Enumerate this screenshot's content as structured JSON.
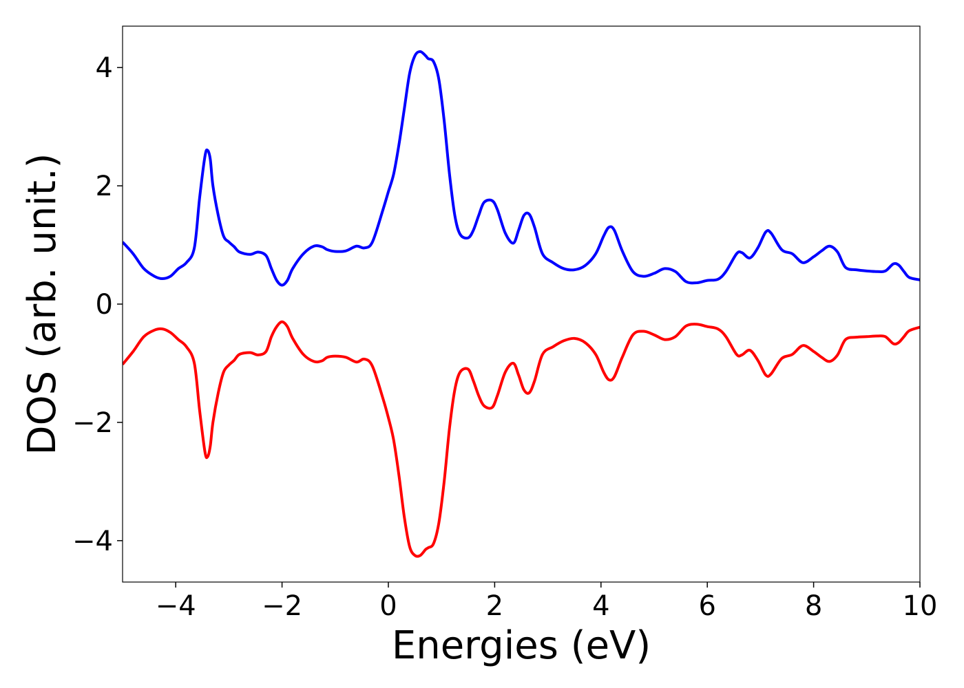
{
  "chart_data": {
    "type": "line",
    "title": "",
    "xlabel": "Energies (eV)",
    "ylabel": "DOS (arb. unit.)",
    "xlim": [
      -5,
      10
    ],
    "ylim": [
      -4.7,
      4.7
    ],
    "xticks": [
      -4,
      -2,
      0,
      2,
      4,
      6,
      8,
      10
    ],
    "yticks": [
      -4,
      -2,
      0,
      2,
      4
    ],
    "xtick_labels": [
      "−4",
      "−2",
      "0",
      "2",
      "4",
      "6",
      "8",
      "10"
    ],
    "ytick_labels": [
      "−4",
      "−2",
      "0",
      "2",
      "4"
    ],
    "grid": false,
    "legend": "none",
    "series": [
      {
        "color": "#0000ff",
        "x": [
          -5.0,
          -4.8,
          -4.6,
          -4.4,
          -4.25,
          -4.1,
          -3.95,
          -3.8,
          -3.65,
          -3.55,
          -3.45,
          -3.4,
          -3.35,
          -3.3,
          -3.2,
          -3.1,
          -3.0,
          -2.9,
          -2.8,
          -2.6,
          -2.45,
          -2.3,
          -2.2,
          -2.1,
          -2.0,
          -1.9,
          -1.8,
          -1.6,
          -1.4,
          -1.25,
          -1.15,
          -1.0,
          -0.8,
          -0.6,
          -0.45,
          -0.3,
          -0.1,
          0.0,
          0.1,
          0.2,
          0.3,
          0.4,
          0.5,
          0.6,
          0.7,
          0.75,
          0.85,
          0.95,
          1.05,
          1.15,
          1.25,
          1.35,
          1.5,
          1.6,
          1.7,
          1.8,
          1.95,
          2.05,
          2.2,
          2.35,
          2.45,
          2.55,
          2.65,
          2.75,
          2.9,
          3.1,
          3.3,
          3.5,
          3.7,
          3.9,
          4.05,
          4.15,
          4.25,
          4.4,
          4.6,
          4.8,
          5.0,
          5.2,
          5.4,
          5.6,
          5.8,
          6.0,
          6.2,
          6.35,
          6.55,
          6.65,
          6.8,
          6.95,
          7.1,
          7.2,
          7.4,
          7.6,
          7.8,
          8.0,
          8.15,
          8.3,
          8.45,
          8.6,
          8.8,
          9.0,
          9.2,
          9.35,
          9.5,
          9.6,
          9.7,
          9.8,
          10.0
        ],
        "values": [
          1.05,
          0.85,
          0.6,
          0.47,
          0.43,
          0.47,
          0.6,
          0.7,
          0.95,
          1.8,
          2.5,
          2.6,
          2.45,
          2.0,
          1.5,
          1.15,
          1.05,
          0.97,
          0.88,
          0.84,
          0.88,
          0.82,
          0.6,
          0.4,
          0.32,
          0.4,
          0.6,
          0.85,
          0.98,
          0.97,
          0.92,
          0.89,
          0.9,
          0.98,
          0.95,
          1.05,
          1.6,
          1.9,
          2.2,
          2.7,
          3.3,
          3.9,
          4.2,
          4.27,
          4.2,
          4.15,
          4.1,
          3.8,
          3.1,
          2.2,
          1.5,
          1.18,
          1.12,
          1.25,
          1.5,
          1.72,
          1.75,
          1.6,
          1.2,
          1.03,
          1.25,
          1.5,
          1.52,
          1.3,
          0.85,
          0.7,
          0.6,
          0.58,
          0.65,
          0.85,
          1.15,
          1.3,
          1.25,
          0.9,
          0.55,
          0.47,
          0.52,
          0.6,
          0.55,
          0.38,
          0.36,
          0.4,
          0.42,
          0.55,
          0.85,
          0.87,
          0.78,
          0.95,
          1.22,
          1.2,
          0.92,
          0.85,
          0.7,
          0.8,
          0.9,
          0.98,
          0.88,
          0.62,
          0.58,
          0.56,
          0.55,
          0.56,
          0.68,
          0.66,
          0.55,
          0.45,
          0.41
        ]
      },
      {
        "color": "#ff0000",
        "x": [
          -5.0,
          -4.8,
          -4.6,
          -4.4,
          -4.25,
          -4.1,
          -3.95,
          -3.8,
          -3.65,
          -3.55,
          -3.45,
          -3.4,
          -3.35,
          -3.3,
          -3.2,
          -3.1,
          -3.0,
          -2.9,
          -2.8,
          -2.6,
          -2.45,
          -2.3,
          -2.2,
          -2.1,
          -2.0,
          -1.9,
          -1.8,
          -1.6,
          -1.4,
          -1.25,
          -1.15,
          -1.0,
          -0.8,
          -0.6,
          -0.45,
          -0.3,
          -0.1,
          0.0,
          0.1,
          0.2,
          0.3,
          0.4,
          0.5,
          0.6,
          0.7,
          0.75,
          0.85,
          0.95,
          1.05,
          1.15,
          1.25,
          1.35,
          1.5,
          1.6,
          1.7,
          1.8,
          1.95,
          2.05,
          2.2,
          2.35,
          2.45,
          2.55,
          2.65,
          2.75,
          2.9,
          3.1,
          3.3,
          3.5,
          3.7,
          3.9,
          4.05,
          4.15,
          4.25,
          4.4,
          4.6,
          4.8,
          5.0,
          5.2,
          5.4,
          5.6,
          5.8,
          6.0,
          6.2,
          6.35,
          6.55,
          6.65,
          6.8,
          6.95,
          7.1,
          7.2,
          7.4,
          7.6,
          7.8,
          8.0,
          8.15,
          8.3,
          8.45,
          8.6,
          8.8,
          9.0,
          9.2,
          9.35,
          9.5,
          9.6,
          9.7,
          9.8,
          10.0
        ],
        "values": [
          -1.02,
          -0.8,
          -0.55,
          -0.44,
          -0.42,
          -0.48,
          -0.6,
          -0.72,
          -1.0,
          -1.8,
          -2.5,
          -2.58,
          -2.4,
          -2.0,
          -1.5,
          -1.15,
          -1.03,
          -0.95,
          -0.85,
          -0.82,
          -0.86,
          -0.8,
          -0.55,
          -0.38,
          -0.3,
          -0.38,
          -0.58,
          -0.85,
          -0.97,
          -0.96,
          -0.9,
          -0.88,
          -0.9,
          -0.98,
          -0.93,
          -1.05,
          -1.6,
          -1.92,
          -2.3,
          -2.9,
          -3.6,
          -4.1,
          -4.25,
          -4.25,
          -4.15,
          -4.12,
          -4.05,
          -3.7,
          -3.0,
          -2.1,
          -1.45,
          -1.15,
          -1.1,
          -1.3,
          -1.55,
          -1.72,
          -1.75,
          -1.55,
          -1.15,
          -1.0,
          -1.2,
          -1.45,
          -1.5,
          -1.3,
          -0.85,
          -0.72,
          -0.62,
          -0.58,
          -0.65,
          -0.85,
          -1.15,
          -1.28,
          -1.23,
          -0.9,
          -0.52,
          -0.46,
          -0.52,
          -0.6,
          -0.55,
          -0.37,
          -0.34,
          -0.38,
          -0.42,
          -0.55,
          -0.85,
          -0.86,
          -0.78,
          -0.95,
          -1.2,
          -1.18,
          -0.92,
          -0.85,
          -0.7,
          -0.8,
          -0.9,
          -0.97,
          -0.86,
          -0.6,
          -0.56,
          -0.55,
          -0.54,
          -0.55,
          -0.67,
          -0.65,
          -0.55,
          -0.45,
          -0.39
        ]
      }
    ]
  }
}
